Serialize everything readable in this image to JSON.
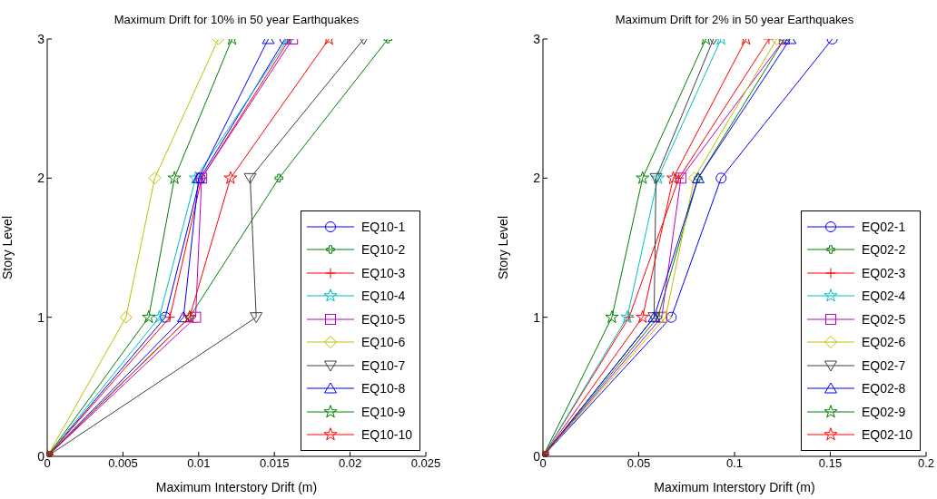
{
  "chart_data": [
    {
      "type": "line",
      "title": "Maximum Drift for 10% in 50 year Earthquakes",
      "xlabel": "Maximum Interstory Drift (m)",
      "ylabel": "Story Level",
      "xlim": [
        0,
        0.025
      ],
      "xticks": [
        0,
        0.005,
        0.01,
        0.015,
        0.02,
        0.025
      ],
      "ylim": [
        0,
        3
      ],
      "yticks": [
        0,
        1,
        2,
        3
      ],
      "grid": false,
      "legend": "bottom right",
      "series": [
        {
          "name": "EQ10-1",
          "color": "#0000ff",
          "marker": "circle",
          "x": [
            0,
            0.0078,
            0.0101,
            0.0157
          ],
          "values": [
            0,
            1,
            2,
            3
          ]
        },
        {
          "name": "EQ10-2",
          "color": "#008000",
          "marker": "cross",
          "x": [
            0,
            0.0094,
            0.0153,
            0.0225
          ],
          "values": [
            0,
            1,
            2,
            3
          ]
        },
        {
          "name": "EQ10-3",
          "color": "#ff0000",
          "marker": "plus",
          "x": [
            0,
            0.0081,
            0.0102,
            0.016
          ],
          "values": [
            0,
            1,
            2,
            3
          ]
        },
        {
          "name": "EQ10-4",
          "color": "#00bfbf",
          "marker": "star",
          "x": [
            0,
            0.0074,
            0.0098,
            0.0159
          ],
          "values": [
            0,
            1,
            2,
            3
          ]
        },
        {
          "name": "EQ10-5",
          "color": "#bf00bf",
          "marker": "square",
          "x": [
            0,
            0.0098,
            0.0102,
            0.0162
          ],
          "values": [
            0,
            1,
            2,
            3
          ]
        },
        {
          "name": "EQ10-6",
          "color": "#bfbf00",
          "marker": "diamond",
          "x": [
            0,
            0.0052,
            0.0071,
            0.0113
          ],
          "values": [
            0,
            1,
            2,
            3
          ]
        },
        {
          "name": "EQ10-7",
          "color": "#404040",
          "marker": "triangle-down",
          "x": [
            0,
            0.0138,
            0.0134,
            0.0209
          ],
          "values": [
            0,
            1,
            2,
            3
          ]
        },
        {
          "name": "EQ10-8",
          "color": "#0000ff",
          "marker": "triangle",
          "x": [
            0,
            0.009,
            0.01,
            0.0146
          ],
          "values": [
            0,
            1,
            2,
            3
          ]
        },
        {
          "name": "EQ10-9",
          "color": "#008000",
          "marker": "star",
          "x": [
            0,
            0.0067,
            0.0084,
            0.0122
          ],
          "values": [
            0,
            1,
            2,
            3
          ]
        },
        {
          "name": "EQ10-10",
          "color": "#ff0000",
          "marker": "star",
          "x": [
            0,
            0.0094,
            0.0121,
            0.0186
          ],
          "values": [
            0,
            1,
            2,
            3
          ]
        }
      ]
    },
    {
      "type": "line",
      "title": "Maximum Drift for 2% in 50 year Earthquakes",
      "xlabel": "Maximum Interstory Drift (m)",
      "ylabel": "Story Level",
      "xlim": [
        0,
        0.2
      ],
      "xticks": [
        0,
        0.05,
        0.1,
        0.15,
        0.2
      ],
      "ylim": [
        0,
        3
      ],
      "yticks": [
        0,
        1,
        2,
        3
      ],
      "grid": false,
      "legend": "bottom right",
      "series": [
        {
          "name": "EQ02-1",
          "color": "#0000ff",
          "marker": "circle",
          "x": [
            0,
            0.067,
            0.093,
            0.151
          ],
          "values": [
            0,
            1,
            2,
            3
          ]
        },
        {
          "name": "EQ02-2",
          "color": "#008000",
          "marker": "cross",
          "x": [
            0,
            0.06,
            0.081,
            0.126
          ],
          "values": [
            0,
            1,
            2,
            3
          ]
        },
        {
          "name": "EQ02-3",
          "color": "#ff0000",
          "marker": "plus",
          "x": [
            0,
            0.045,
            0.071,
            0.118
          ],
          "values": [
            0,
            1,
            2,
            3
          ]
        },
        {
          "name": "EQ02-4",
          "color": "#00bfbf",
          "marker": "star",
          "x": [
            0,
            0.044,
            0.06,
            0.093
          ],
          "values": [
            0,
            1,
            2,
            3
          ]
        },
        {
          "name": "EQ02-5",
          "color": "#bf00bf",
          "marker": "square",
          "x": [
            0,
            0.062,
            0.072,
            0.126
          ],
          "values": [
            0,
            1,
            2,
            3
          ]
        },
        {
          "name": "EQ02-6",
          "color": "#bfbf00",
          "marker": "diamond",
          "x": [
            0,
            0.064,
            0.079,
            0.122
          ],
          "values": [
            0,
            1,
            2,
            3
          ]
        },
        {
          "name": "EQ02-7",
          "color": "#404040",
          "marker": "triangle-down",
          "x": [
            0,
            0.058,
            0.059,
            0.089
          ],
          "values": [
            0,
            1,
            2,
            3
          ]
        },
        {
          "name": "EQ02-8",
          "color": "#0000ff",
          "marker": "triangle",
          "x": [
            0,
            0.058,
            0.081,
            0.129
          ],
          "values": [
            0,
            1,
            2,
            3
          ]
        },
        {
          "name": "EQ02-9",
          "color": "#008000",
          "marker": "star",
          "x": [
            0,
            0.036,
            0.052,
            0.085
          ],
          "values": [
            0,
            1,
            2,
            3
          ]
        },
        {
          "name": "EQ02-10",
          "color": "#ff0000",
          "marker": "star",
          "x": [
            0,
            0.052,
            0.068,
            0.106
          ],
          "values": [
            0,
            1,
            2,
            3
          ]
        }
      ]
    }
  ]
}
